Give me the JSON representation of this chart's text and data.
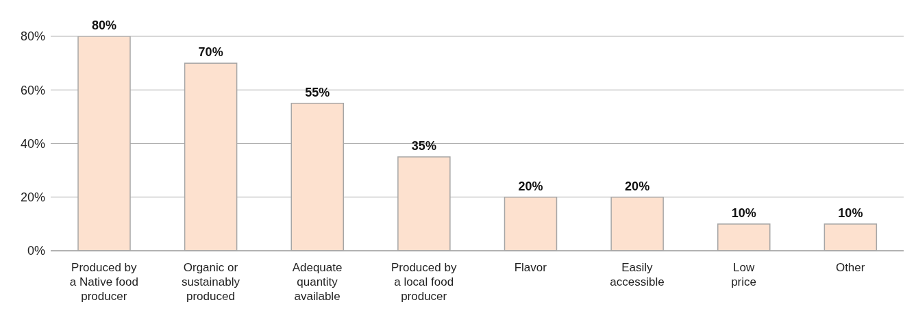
{
  "chart_data": {
    "type": "bar",
    "categories": [
      "Produced by\na Native food\nproducer",
      "Organic or\nsustainably\nproduced",
      "Adequate\nquantity\navailable",
      "Produced by\na local food\nproducer",
      "Flavor",
      "Easily\naccessible",
      "Low\nprice",
      "Other"
    ],
    "values": [
      80,
      70,
      55,
      35,
      20,
      20,
      10,
      10
    ],
    "value_labels": [
      "80%",
      "70%",
      "55%",
      "35%",
      "20%",
      "20%",
      "10%",
      "10%"
    ],
    "color": "#fde1cf",
    "ylim": [
      0,
      80
    ],
    "yticks": [
      {
        "value": 0,
        "label": "0%"
      },
      {
        "value": 20,
        "label": "20%"
      },
      {
        "value": 40,
        "label": "40%"
      },
      {
        "value": 60,
        "label": "60%"
      },
      {
        "value": 80,
        "label": "80%"
      }
    ],
    "grid": "y",
    "legend": false
  }
}
